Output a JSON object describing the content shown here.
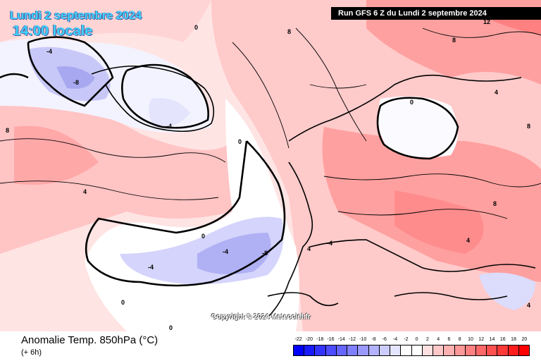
{
  "header": {
    "date_label": "Lundi 2 septembre 2024",
    "time_label": "14:00 locale",
    "run_label": "Run GFS 6 Z du Lundi 2 septembre 2024"
  },
  "footer": {
    "title": "Anomalie Temp. 850hPa (°C)",
    "subtitle": "(+ 6h)",
    "copyright": "Copyright © 2024 Meteociel.fr"
  },
  "legend": {
    "ticks": [
      "-22",
      "-20",
      "-18",
      "-16",
      "-14",
      "-12",
      "-10",
      "-8",
      "-6",
      "-4",
      "-2",
      "0",
      "2",
      "4",
      "6",
      "8",
      "10",
      "12",
      "14",
      "16",
      "18",
      "20"
    ],
    "colors": [
      "#0000ff",
      "#1a1aff",
      "#3333ff",
      "#4d4dff",
      "#6666ff",
      "#7f7fff",
      "#9999ff",
      "#b2b2ff",
      "#ccccff",
      "#e5e5ff",
      "#ffffff",
      "#ffffff",
      "#ffe0e0",
      "#ffc8c8",
      "#ffb0b0",
      "#ff9898",
      "#ff8080",
      "#ff6868",
      "#ff5050",
      "#ff3838",
      "#ff1c1c",
      "#ff0000"
    ]
  },
  "contour_labels": [
    "0",
    "4",
    "-4",
    "8",
    "-8",
    "12"
  ]
}
